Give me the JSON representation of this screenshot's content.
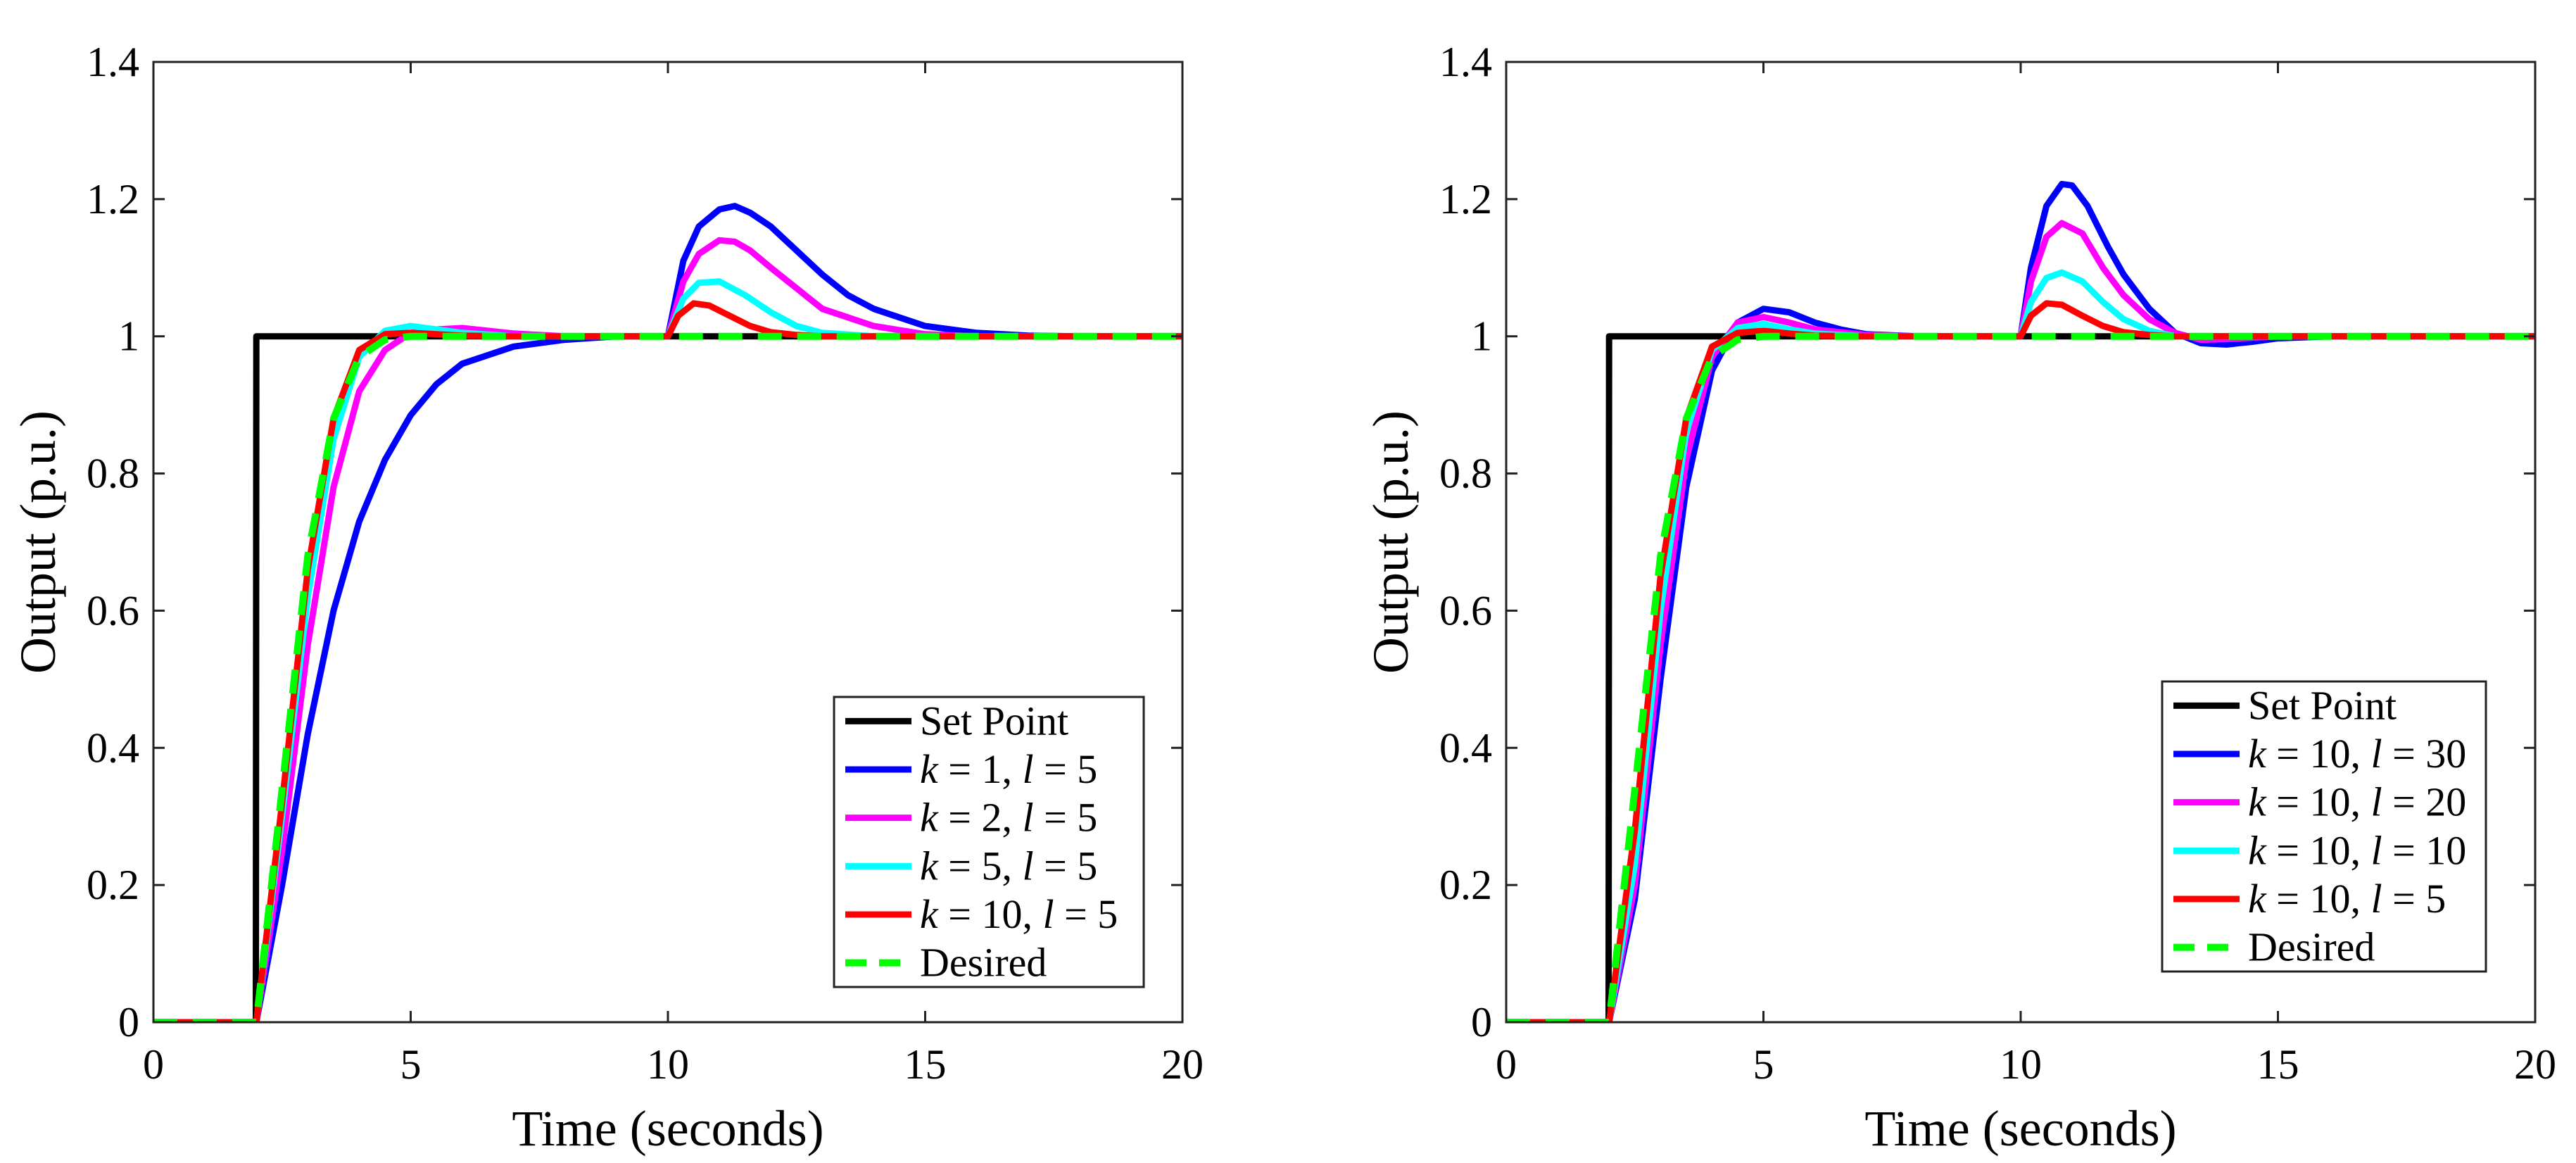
{
  "chart_data": [
    {
      "type": "line",
      "title": "",
      "xlabel": "Time (seconds)",
      "ylabel": "Output (p.u.)",
      "xlim": [
        0,
        20
      ],
      "ylim": [
        0,
        1.4
      ],
      "xticks": [
        0,
        5,
        10,
        15,
        20
      ],
      "yticks": [
        0,
        0.2,
        0.4,
        0.6,
        0.8,
        1,
        1.2,
        1.4
      ],
      "xtick_labels": [
        "0",
        "5",
        "10",
        "15",
        "20"
      ],
      "ytick_labels": [
        "0",
        "0.2",
        "0.4",
        "0.6",
        "0.8",
        "1",
        "1.2",
        "1.4"
      ],
      "grid": false,
      "legend_position": "bottom-right",
      "series": [
        {
          "name": "Set Point",
          "k": "",
          "l": "",
          "color": "#000000",
          "dash": false,
          "x": [
            0,
            1.99,
            2,
            20
          ],
          "y": [
            0,
            0,
            1,
            1
          ]
        },
        {
          "name": "k = 1, l = 5",
          "k": "1",
          "l": "5",
          "color": "#0000FF",
          "dash": false,
          "x": [
            0,
            2,
            2.5,
            3,
            3.5,
            4,
            4.5,
            5,
            5.5,
            6,
            7,
            8,
            9,
            10,
            10.3,
            10.6,
            11,
            11.3,
            11.6,
            12,
            12.5,
            13,
            13.5,
            14,
            15,
            16,
            17,
            18,
            20
          ],
          "y": [
            0,
            0,
            0.2,
            0.42,
            0.6,
            0.73,
            0.82,
            0.885,
            0.93,
            0.96,
            0.985,
            0.995,
            1.0,
            1.0,
            1.11,
            1.16,
            1.185,
            1.19,
            1.18,
            1.16,
            1.125,
            1.09,
            1.06,
            1.04,
            1.015,
            1.005,
            1.001,
            1.0,
            1.0
          ]
        },
        {
          "name": "k = 2, l = 5",
          "k": "2",
          "l": "5",
          "color": "#FF00FF",
          "dash": false,
          "x": [
            0,
            2,
            2.5,
            3,
            3.5,
            4,
            4.5,
            5,
            5.5,
            6,
            6.5,
            7,
            8,
            10,
            10.3,
            10.6,
            11,
            11.3,
            11.6,
            12,
            12.5,
            13,
            14,
            15,
            16,
            20
          ],
          "y": [
            0,
            0,
            0.25,
            0.55,
            0.78,
            0.92,
            0.98,
            1.005,
            1.01,
            1.012,
            1.008,
            1.004,
            1.0,
            1.0,
            1.08,
            1.12,
            1.14,
            1.138,
            1.125,
            1.1,
            1.07,
            1.04,
            1.015,
            1.003,
            1.0,
            1.0
          ]
        },
        {
          "name": "k = 5, l = 5",
          "k": "5",
          "l": "5",
          "color": "#00FFFF",
          "dash": false,
          "x": [
            0,
            2,
            2.5,
            3,
            3.5,
            4,
            4.5,
            5,
            5.5,
            6,
            7,
            10,
            10.3,
            10.6,
            11,
            11.5,
            12,
            12.5,
            13,
            14,
            20
          ],
          "y": [
            0,
            0,
            0.3,
            0.62,
            0.85,
            0.97,
            1.008,
            1.015,
            1.01,
            1.005,
            1.0,
            1.0,
            1.055,
            1.078,
            1.08,
            1.06,
            1.035,
            1.015,
            1.005,
            1.0,
            1.0
          ]
        },
        {
          "name": "k = 10, l = 5",
          "k": "10",
          "l": "5",
          "color": "#FF0000",
          "dash": false,
          "x": [
            0,
            2,
            2.5,
            3,
            3.5,
            4,
            4.5,
            5,
            5.5,
            6,
            7,
            10,
            10.2,
            10.5,
            10.8,
            11.2,
            11.6,
            12,
            12.5,
            13,
            20
          ],
          "y": [
            0,
            0,
            0.32,
            0.66,
            0.88,
            0.98,
            1.003,
            1.005,
            1.003,
            1.001,
            1.0,
            1.0,
            1.03,
            1.048,
            1.045,
            1.03,
            1.015,
            1.006,
            1.002,
            1.0,
            1.0
          ]
        },
        {
          "name": "Desired",
          "k": "",
          "l": "",
          "color": "#00FF00",
          "dash": true,
          "x": [
            0,
            2,
            2.5,
            3,
            3.5,
            4,
            4.5,
            5,
            5.5,
            6,
            20
          ],
          "y": [
            0,
            0,
            0.34,
            0.68,
            0.88,
            0.97,
            0.995,
            1.0,
            1.0,
            1.0,
            1.0
          ]
        }
      ]
    },
    {
      "type": "line",
      "title": "",
      "xlabel": "Time (seconds)",
      "ylabel": "Output (p.u.)",
      "xlim": [
        0,
        20
      ],
      "ylim": [
        0,
        1.4
      ],
      "xticks": [
        0,
        5,
        10,
        15,
        20
      ],
      "yticks": [
        0,
        0.2,
        0.4,
        0.6,
        0.8,
        1,
        1.2,
        1.4
      ],
      "xtick_labels": [
        "0",
        "5",
        "10",
        "15",
        "20"
      ],
      "ytick_labels": [
        "0",
        "0.2",
        "0.4",
        "0.6",
        "0.8",
        "1",
        "1.2",
        "1.4"
      ],
      "grid": false,
      "legend_position": "bottom-right",
      "series": [
        {
          "name": "Set Point",
          "k": "",
          "l": "",
          "color": "#000000",
          "dash": false,
          "x": [
            0,
            1.99,
            2,
            20
          ],
          "y": [
            0,
            0,
            1,
            1
          ]
        },
        {
          "name": "k = 10, l = 30",
          "k": "10",
          "l": "30",
          "color": "#0000FF",
          "dash": false,
          "x": [
            0,
            2,
            2.5,
            3,
            3.5,
            4,
            4.5,
            5,
            5.5,
            6,
            6.5,
            7,
            8,
            10,
            10.2,
            10.5,
            10.8,
            11,
            11.3,
            11.7,
            12,
            12.5,
            13,
            13.5,
            14,
            14.5,
            15,
            16,
            20
          ],
          "y": [
            0,
            0,
            0.18,
            0.5,
            0.78,
            0.95,
            1.02,
            1.04,
            1.035,
            1.02,
            1.01,
            1.003,
            1.0,
            1.0,
            1.1,
            1.19,
            1.222,
            1.22,
            1.19,
            1.13,
            1.09,
            1.04,
            1.005,
            0.99,
            0.988,
            0.992,
            0.997,
            1.0,
            1.0
          ]
        },
        {
          "name": "k = 10, l = 20",
          "k": "10",
          "l": "20",
          "color": "#FF00FF",
          "dash": false,
          "x": [
            0,
            2,
            2.5,
            3,
            3.5,
            4,
            4.5,
            5,
            5.5,
            6,
            7,
            8,
            10,
            10.2,
            10.5,
            10.8,
            11.2,
            11.6,
            12,
            12.5,
            13,
            13.5,
            14,
            15,
            20
          ],
          "y": [
            0,
            0,
            0.2,
            0.55,
            0.82,
            0.97,
            1.02,
            1.028,
            1.02,
            1.01,
            1.002,
            1.0,
            1.0,
            1.08,
            1.145,
            1.165,
            1.15,
            1.1,
            1.06,
            1.025,
            1.005,
            0.995,
            0.996,
            1.0,
            1.0
          ]
        },
        {
          "name": "k = 10, l = 10",
          "k": "10",
          "l": "10",
          "color": "#00FFFF",
          "dash": false,
          "x": [
            0,
            2,
            2.5,
            3,
            3.5,
            4,
            4.5,
            5,
            5.5,
            6,
            7,
            10,
            10.2,
            10.5,
            10.8,
            11.2,
            11.6,
            12,
            12.5,
            13,
            14,
            20
          ],
          "y": [
            0,
            0,
            0.23,
            0.6,
            0.86,
            0.98,
            1.012,
            1.018,
            1.01,
            1.004,
            1.0,
            1.0,
            1.05,
            1.085,
            1.093,
            1.08,
            1.05,
            1.025,
            1.008,
            1.0,
            1.0,
            1.0
          ]
        },
        {
          "name": "k = 10, l = 5",
          "k": "10",
          "l": "5",
          "color": "#FF0000",
          "dash": false,
          "x": [
            0,
            2,
            2.5,
            3,
            3.5,
            4,
            4.5,
            5,
            5.5,
            6,
            7,
            10,
            10.2,
            10.5,
            10.8,
            11.2,
            11.6,
            12,
            12.5,
            13,
            20
          ],
          "y": [
            0,
            0,
            0.28,
            0.65,
            0.88,
            0.985,
            1.005,
            1.008,
            1.004,
            1.001,
            1.0,
            1.0,
            1.03,
            1.048,
            1.046,
            1.03,
            1.015,
            1.006,
            1.002,
            1.0,
            1.0
          ]
        },
        {
          "name": "Desired",
          "k": "",
          "l": "",
          "color": "#00FF00",
          "dash": true,
          "x": [
            0,
            2,
            2.5,
            3,
            3.5,
            4,
            4.5,
            5,
            5.5,
            6,
            20
          ],
          "y": [
            0,
            0,
            0.34,
            0.68,
            0.88,
            0.97,
            0.995,
            1.0,
            1.0,
            1.0,
            1.0
          ]
        }
      ]
    }
  ]
}
